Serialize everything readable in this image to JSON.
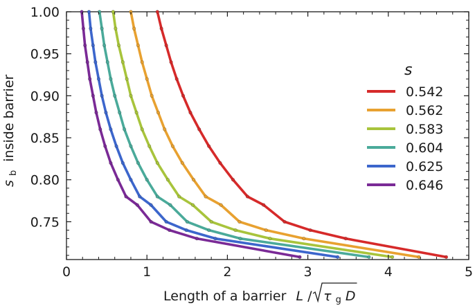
{
  "chart_data": {
    "type": "line",
    "xlabel": "Length of a barrier",
    "xlabel_math": {
      "L": "L",
      "slash": "/",
      "tau": "τ",
      "g": "g",
      "D": "D"
    },
    "ylabel": {
      "s": "s",
      "sub": "b",
      "rest": "inside barrier"
    },
    "xlim": [
      0,
      5
    ],
    "ylim": [
      0.705,
      1.0
    ],
    "x_ticks": [
      0,
      1,
      2,
      3,
      4,
      5
    ],
    "x_tick_labels": [
      "0",
      "1",
      "2",
      "3",
      "4",
      "5"
    ],
    "y_ticks": [
      0.75,
      0.8,
      0.85,
      0.9,
      0.95,
      1.0
    ],
    "y_tick_labels": [
      "0.75",
      "0.80",
      "0.85",
      "0.90",
      "0.95",
      "1.00"
    ],
    "grid": false,
    "legend": {
      "title": "s",
      "placement": "right"
    },
    "series": [
      {
        "name": "0.542",
        "color": "#d62a2a",
        "x": [
          1.13,
          1.18,
          1.24,
          1.3,
          1.37,
          1.45,
          1.54,
          1.65,
          1.77,
          1.91,
          2.07,
          2.25,
          2.45,
          2.71,
          3.03,
          3.47,
          4.72
        ],
        "y": [
          1.0,
          0.98,
          0.96,
          0.94,
          0.92,
          0.9,
          0.88,
          0.86,
          0.84,
          0.82,
          0.8,
          0.78,
          0.77,
          0.75,
          0.74,
          0.73,
          0.708
        ]
      },
      {
        "name": "0.562",
        "color": "#e8a130",
        "x": [
          0.8,
          0.84,
          0.89,
          0.94,
          1.0,
          1.06,
          1.14,
          1.22,
          1.32,
          1.44,
          1.58,
          1.73,
          1.92,
          2.15,
          2.48,
          2.95,
          4.38
        ],
        "y": [
          1.0,
          0.98,
          0.96,
          0.94,
          0.92,
          0.9,
          0.88,
          0.86,
          0.84,
          0.82,
          0.8,
          0.78,
          0.77,
          0.75,
          0.74,
          0.73,
          0.708
        ]
      },
      {
        "name": "0.583",
        "color": "#a8c43c",
        "x": [
          0.58,
          0.61,
          0.65,
          0.7,
          0.75,
          0.8,
          0.87,
          0.94,
          1.03,
          1.13,
          1.26,
          1.4,
          1.57,
          1.8,
          2.1,
          2.53,
          4.05
        ],
        "y": [
          1.0,
          0.98,
          0.96,
          0.94,
          0.92,
          0.9,
          0.88,
          0.86,
          0.84,
          0.82,
          0.8,
          0.78,
          0.77,
          0.75,
          0.74,
          0.73,
          0.708
        ]
      },
      {
        "name": "0.604",
        "color": "#4aaa9a",
        "x": [
          0.41,
          0.44,
          0.47,
          0.51,
          0.55,
          0.6,
          0.66,
          0.72,
          0.8,
          0.89,
          1.0,
          1.13,
          1.29,
          1.5,
          1.77,
          2.16,
          3.76
        ],
        "y": [
          1.0,
          0.98,
          0.96,
          0.94,
          0.92,
          0.9,
          0.88,
          0.86,
          0.84,
          0.82,
          0.8,
          0.78,
          0.77,
          0.75,
          0.74,
          0.73,
          0.708
        ]
      },
      {
        "name": "0.625",
        "color": "#3c66cc",
        "x": [
          0.28,
          0.3,
          0.33,
          0.36,
          0.4,
          0.44,
          0.49,
          0.55,
          0.62,
          0.7,
          0.8,
          0.91,
          1.05,
          1.24,
          1.49,
          1.85,
          3.37
        ],
        "y": [
          1.0,
          0.98,
          0.96,
          0.94,
          0.92,
          0.9,
          0.88,
          0.86,
          0.84,
          0.82,
          0.8,
          0.78,
          0.77,
          0.75,
          0.74,
          0.73,
          0.708
        ]
      },
      {
        "name": "0.646",
        "color": "#7a2a96",
        "x": [
          0.19,
          0.21,
          0.23,
          0.26,
          0.29,
          0.33,
          0.37,
          0.42,
          0.48,
          0.55,
          0.64,
          0.74,
          0.88,
          1.05,
          1.28,
          1.62,
          2.9
        ],
        "y": [
          1.0,
          0.98,
          0.96,
          0.94,
          0.92,
          0.9,
          0.88,
          0.86,
          0.84,
          0.82,
          0.8,
          0.78,
          0.77,
          0.75,
          0.74,
          0.73,
          0.708
        ]
      }
    ]
  }
}
